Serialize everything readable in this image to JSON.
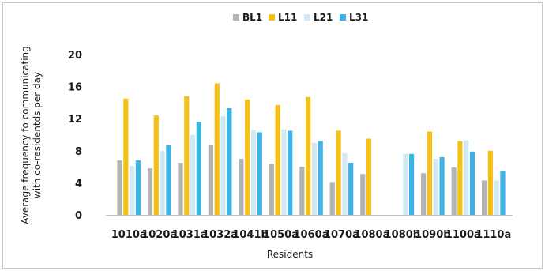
{
  "chart_data": {
    "type": "bar",
    "xlabel": "Residents",
    "ylabel_lines": [
      "Average frequency fo communicating",
      "with co-residentds per day"
    ],
    "ylim": [
      0,
      20
    ],
    "yticks": [
      0,
      4,
      8,
      12,
      16,
      20
    ],
    "grid": false,
    "legend_position": "top",
    "categories": [
      "1010a",
      "1020a",
      "1031a",
      "1032a",
      "1041b",
      "1050a",
      "1060a",
      "1070a",
      "1080a",
      "1080b",
      "1090b",
      "1100a",
      "1110a"
    ],
    "series": [
      {
        "name": "BL1",
        "color": "#b3b3b3",
        "values": [
          6.8,
          5.8,
          6.5,
          8.7,
          7.0,
          6.4,
          6.0,
          4.1,
          5.1,
          null,
          5.2,
          5.9,
          4.3
        ]
      },
      {
        "name": "L11",
        "color": "#f5c018",
        "values": [
          14.5,
          12.4,
          14.8,
          16.4,
          14.4,
          13.7,
          14.7,
          10.5,
          9.5,
          null,
          10.4,
          9.2,
          8.0
        ]
      },
      {
        "name": "L21",
        "color": "#d2e8f5",
        "values": [
          6.1,
          8.0,
          10.0,
          12.3,
          10.6,
          10.7,
          9.0,
          7.7,
          null,
          7.6,
          7.0,
          9.3,
          4.3
        ]
      },
      {
        "name": "L31",
        "color": "#3eb4e6",
        "values": [
          6.8,
          8.7,
          11.6,
          13.3,
          10.3,
          10.5,
          9.2,
          6.5,
          null,
          7.6,
          7.2,
          7.9,
          5.5
        ]
      }
    ]
  }
}
